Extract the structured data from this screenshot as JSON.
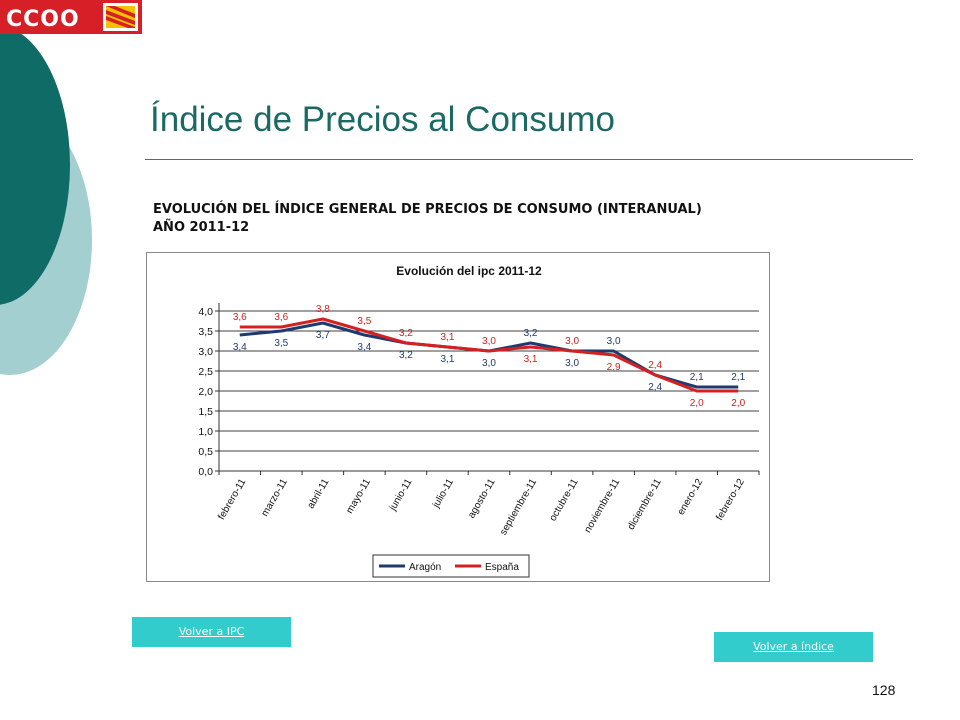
{
  "logo": {
    "text": "CCOO"
  },
  "page_title": "Índice de Precios al Consumo",
  "subtitle": {
    "line1": "EVOLUCIÓN DEL ÍNDICE GENERAL DE PRECIOS DE CONSUMO (INTERANUAL)",
    "line2": "AÑO 2011-12"
  },
  "chart_data": {
    "type": "line",
    "title": "Evolución del ipc 2011-12",
    "xlabel": "",
    "ylabel": "",
    "categories": [
      "febrero-11",
      "marzo-11",
      "abril-11",
      "mayo-11",
      "junio-11",
      "julio-11",
      "agosto-11",
      "septiembre-11",
      "octubre-11",
      "noviembre-11",
      "diciembre-11",
      "enero-12",
      "febrero-12"
    ],
    "ylim": [
      0,
      4
    ],
    "yticks": [
      "0,0",
      "0,5",
      "1,0",
      "1,5",
      "2,0",
      "2,5",
      "3,0",
      "3,5",
      "4,0"
    ],
    "grid": true,
    "legend_position": "bottom",
    "series": [
      {
        "name": "Aragón",
        "color": "#1f3a6e",
        "values": [
          3.4,
          3.5,
          3.7,
          3.4,
          3.2,
          3.1,
          3.0,
          3.2,
          3.0,
          3.0,
          2.4,
          2.1,
          2.1
        ],
        "labels": [
          "3,4",
          "3,5",
          "3,7",
          "3,4",
          "3,2",
          "3,1",
          "3,0",
          "3,2",
          "3,0",
          "3,0",
          "2,4",
          "2,1",
          "2,1"
        ]
      },
      {
        "name": "España",
        "color": "#d42020",
        "values": [
          3.6,
          3.6,
          3.8,
          3.5,
          3.2,
          3.1,
          3.0,
          3.1,
          3.0,
          2.9,
          2.4,
          2.0,
          2.0
        ],
        "labels": [
          "3,6",
          "3,6",
          "3,8",
          "3,5",
          "3,2",
          "3,1",
          "3,0",
          "3,1",
          "3,0",
          "2,9",
          "2,4",
          "2,0",
          "2,0"
        ]
      }
    ]
  },
  "buttons": {
    "volver_ipc": "Volver a IPC",
    "volver_indice": "Volver a índice"
  },
  "page_number": "128",
  "colors": {
    "accent": "#1a6a63",
    "button": "#33cccc",
    "brand_red": "#d61f26"
  }
}
